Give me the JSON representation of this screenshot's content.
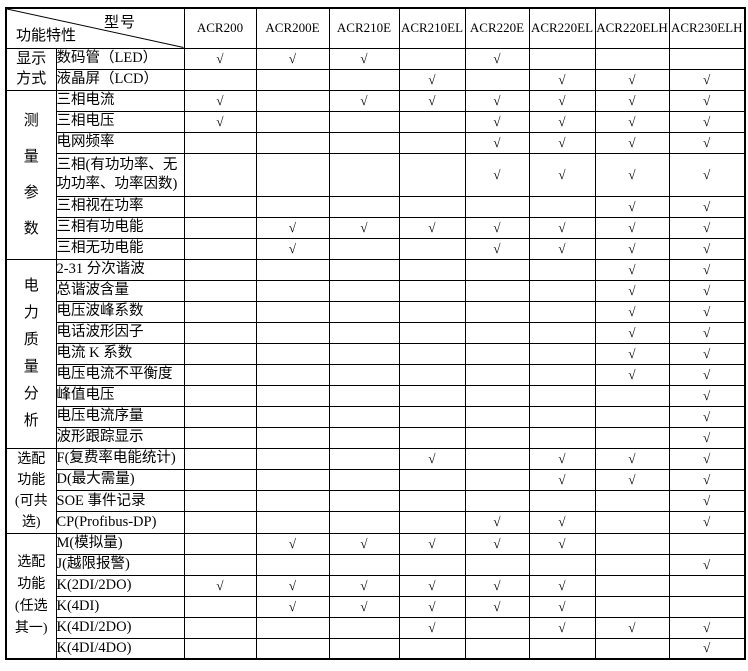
{
  "header": {
    "corner": {
      "top_label": "型号",
      "bottom_label": "功能特性"
    },
    "models": [
      "ACR200",
      "ACR200E",
      "ACR210E",
      "ACR210EL",
      "ACR220E",
      "ACR220EL",
      "ACR220ELH",
      "ACR230ELH"
    ]
  },
  "check_symbol": "√",
  "sections": [
    {
      "category": "显示方式",
      "category_lines": [
        "显示",
        "方式"
      ],
      "rows": [
        {
          "feature": "数码管（LED）",
          "checks": [
            1,
            1,
            1,
            0,
            1,
            0,
            0,
            0
          ]
        },
        {
          "feature": "液晶屏（LCD）",
          "checks": [
            0,
            0,
            0,
            1,
            0,
            1,
            1,
            1
          ]
        }
      ]
    },
    {
      "category": "测量参数",
      "category_lines": [
        "测",
        "量",
        "参",
        "数"
      ],
      "rows": [
        {
          "feature": "三相电流",
          "checks": [
            1,
            0,
            1,
            1,
            1,
            1,
            1,
            1
          ]
        },
        {
          "feature": "三相电压",
          "checks": [
            1,
            0,
            0,
            0,
            1,
            1,
            1,
            1
          ]
        },
        {
          "feature": "电网频率",
          "checks": [
            0,
            0,
            0,
            0,
            1,
            1,
            1,
            1
          ]
        },
        {
          "feature": "三相(有功功率、无功功率、功率因数)",
          "two_line": true,
          "checks": [
            0,
            0,
            0,
            0,
            1,
            1,
            1,
            1
          ]
        },
        {
          "feature": "三相视在功率",
          "checks": [
            0,
            0,
            0,
            0,
            0,
            0,
            1,
            1
          ]
        },
        {
          "feature": "三相有功电能",
          "checks": [
            0,
            1,
            1,
            1,
            1,
            1,
            1,
            1
          ]
        },
        {
          "feature": "三相无功电能",
          "checks": [
            0,
            1,
            0,
            0,
            1,
            1,
            1,
            1
          ]
        }
      ]
    },
    {
      "category": "电力质量分析",
      "category_lines": [
        "电",
        "力",
        "质",
        "量",
        "分",
        "析"
      ],
      "rows": [
        {
          "feature": "2-31 分次谐波",
          "checks": [
            0,
            0,
            0,
            0,
            0,
            0,
            1,
            1
          ]
        },
        {
          "feature": "总谐波含量",
          "checks": [
            0,
            0,
            0,
            0,
            0,
            0,
            1,
            1
          ]
        },
        {
          "feature": "电压波峰系数",
          "checks": [
            0,
            0,
            0,
            0,
            0,
            0,
            1,
            1
          ]
        },
        {
          "feature": "电话波形因子",
          "checks": [
            0,
            0,
            0,
            0,
            0,
            0,
            1,
            1
          ]
        },
        {
          "feature": "电流 K 系数",
          "checks": [
            0,
            0,
            0,
            0,
            0,
            0,
            1,
            1
          ]
        },
        {
          "feature": "电压电流不平衡度",
          "checks": [
            0,
            0,
            0,
            0,
            0,
            0,
            1,
            1
          ]
        },
        {
          "feature": "峰值电压",
          "checks": [
            0,
            0,
            0,
            0,
            0,
            0,
            0,
            1
          ]
        },
        {
          "feature": "电压电流序量",
          "checks": [
            0,
            0,
            0,
            0,
            0,
            0,
            0,
            1
          ]
        },
        {
          "feature": "波形跟踪显示",
          "checks": [
            0,
            0,
            0,
            0,
            0,
            0,
            0,
            1
          ]
        }
      ]
    },
    {
      "category": "选配功能(可共选)",
      "category_lines": [
        "选配",
        "功能",
        "(可共",
        "选)"
      ],
      "rows": [
        {
          "feature": "F(复费率电能统计)",
          "checks": [
            0,
            0,
            0,
            1,
            0,
            1,
            1,
            1
          ]
        },
        {
          "feature": "D(最大需量)",
          "checks": [
            0,
            0,
            0,
            0,
            0,
            1,
            1,
            1
          ]
        },
        {
          "feature": "SOE 事件记录",
          "checks": [
            0,
            0,
            0,
            0,
            0,
            0,
            0,
            1
          ]
        },
        {
          "feature": "CP(Profibus-DP)",
          "checks": [
            0,
            0,
            0,
            0,
            1,
            1,
            0,
            1
          ]
        }
      ]
    },
    {
      "category": "选配功能(任选其一)",
      "category_lines": [
        "选配",
        "功能",
        "(任选",
        "其一)"
      ],
      "rows": [
        {
          "feature": "M(模拟量)",
          "checks": [
            0,
            1,
            1,
            1,
            1,
            1,
            0,
            0
          ]
        },
        {
          "feature": "J(越限报警)",
          "checks": [
            0,
            0,
            0,
            0,
            0,
            0,
            0,
            1
          ]
        },
        {
          "feature": "K(2DI/2DO)",
          "checks": [
            1,
            1,
            1,
            1,
            1,
            1,
            0,
            0
          ]
        },
        {
          "feature": "K(4DI)",
          "checks": [
            0,
            1,
            1,
            1,
            1,
            1,
            0,
            0
          ]
        },
        {
          "feature": "K(4DI/2DO)",
          "checks": [
            0,
            0,
            0,
            1,
            0,
            1,
            1,
            1
          ]
        },
        {
          "feature": "K(4DI/4DO)",
          "checks": [
            0,
            0,
            0,
            0,
            0,
            0,
            0,
            1
          ]
        }
      ]
    }
  ]
}
